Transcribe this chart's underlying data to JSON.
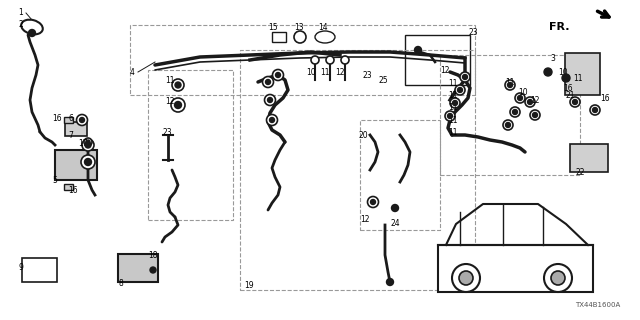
{
  "bg_color": "#ffffff",
  "diagram_code": "TX44B1600A",
  "fr_label": "FR.",
  "line_color": "#1a1a1a",
  "dashed_color": "#999999",
  "label_color": "#000000",
  "label_fontsize": 5.5,
  "figsize": [
    6.4,
    3.2
  ],
  "dpi": 100
}
